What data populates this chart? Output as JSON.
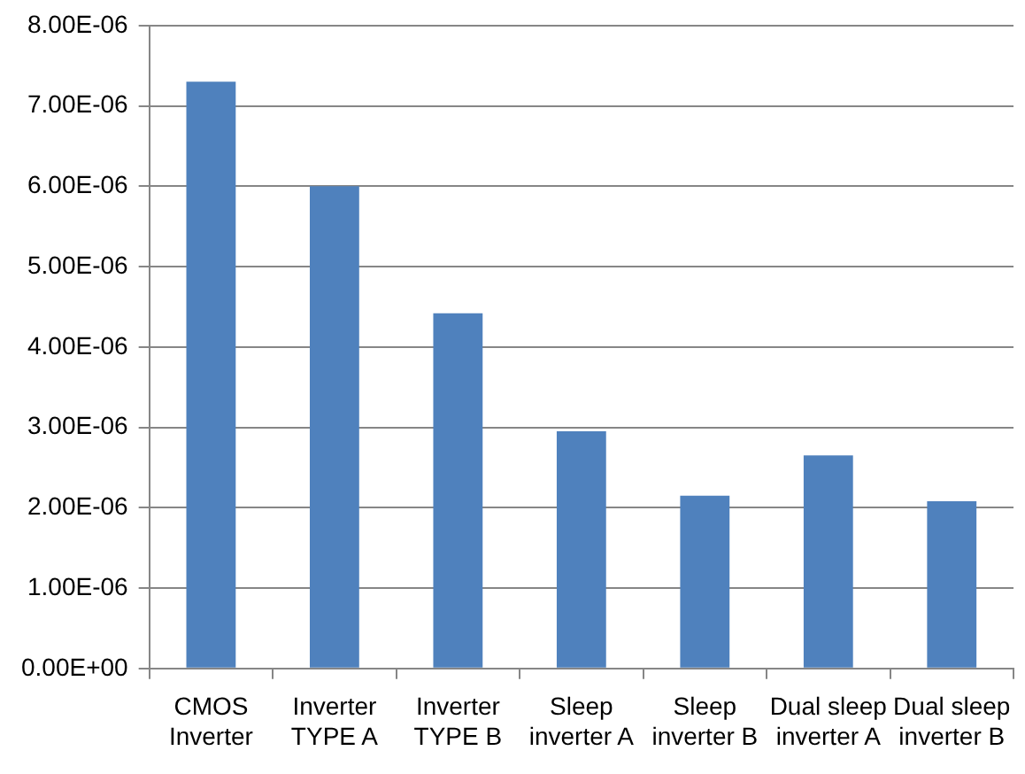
{
  "chart_data": {
    "type": "bar",
    "categories": [
      "CMOS Inverter",
      "Inverter TYPE A",
      "Inverter TYPE B",
      "Sleep inverter A",
      "Sleep inverter B",
      "Dual sleep inverter A",
      "Dual sleep inverter B"
    ],
    "values": [
      7.3e-06,
      6e-06,
      4.42e-06,
      2.95e-06,
      2.15e-06,
      2.65e-06,
      2.08e-06
    ],
    "color": "#4f81bd",
    "ylim": [
      0,
      8e-06
    ],
    "yticks": [
      {
        "value": 0,
        "label": "0.00E+00"
      },
      {
        "value": 1e-06,
        "label": "1.00E-06"
      },
      {
        "value": 2e-06,
        "label": "2.00E-06"
      },
      {
        "value": 3e-06,
        "label": "3.00E-06"
      },
      {
        "value": 4e-06,
        "label": "4.00E-06"
      },
      {
        "value": 5e-06,
        "label": "5.00E-06"
      },
      {
        "value": 6e-06,
        "label": "6.00E-06"
      },
      {
        "value": 7e-06,
        "label": "7.00E-06"
      },
      {
        "value": 8e-06,
        "label": "8.00E-06"
      }
    ],
    "grid": "y",
    "legend": false
  }
}
